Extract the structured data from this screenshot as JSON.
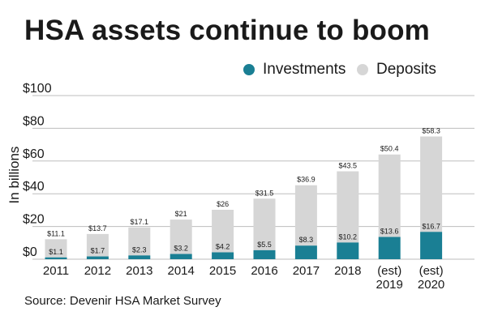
{
  "title": "HSA assets continue to boom",
  "source": "Source: Devenir HSA Market Survey",
  "colors": {
    "investments": "#1a7f94",
    "deposits": "#d6d6d6",
    "grid": "#bdbdbd",
    "text": "#1a1a1a"
  },
  "chart_data": {
    "type": "bar",
    "stacked": true,
    "title": "HSA assets continue to boom",
    "xlabel": "",
    "ylabel": "In billions",
    "ylim": [
      0,
      100
    ],
    "yticks": [
      0,
      20,
      40,
      60,
      80,
      100
    ],
    "ytick_labels": [
      "$0",
      "$20",
      "$40",
      "$60",
      "$80",
      "$100"
    ],
    "grid": true,
    "legend": "top-right",
    "categories": [
      "2011",
      "2012",
      "2013",
      "2014",
      "2015",
      "2016",
      "2017",
      "2018",
      "(est)\n2019",
      "(est)\n2020"
    ],
    "series": [
      {
        "name": "Investments",
        "values": [
          1.1,
          1.7,
          2.3,
          3.2,
          4.2,
          5.5,
          8.3,
          10.2,
          13.6,
          16.7
        ],
        "labels": [
          "$1.1",
          "$1.7",
          "$2.3",
          "$3.2",
          "$4.2",
          "$5.5",
          "$8.3",
          "$10.2",
          "$13.6",
          "$16.7"
        ]
      },
      {
        "name": "Deposits",
        "values": [
          11.1,
          13.7,
          17.1,
          21,
          26,
          31.5,
          36.9,
          43.5,
          50.4,
          58.3
        ],
        "labels": [
          "$11.1",
          "$13.7",
          "$17.1",
          "$21",
          "$26",
          "$31.5",
          "$36.9",
          "$43.5",
          "$50.4",
          "$58.3"
        ]
      }
    ]
  }
}
